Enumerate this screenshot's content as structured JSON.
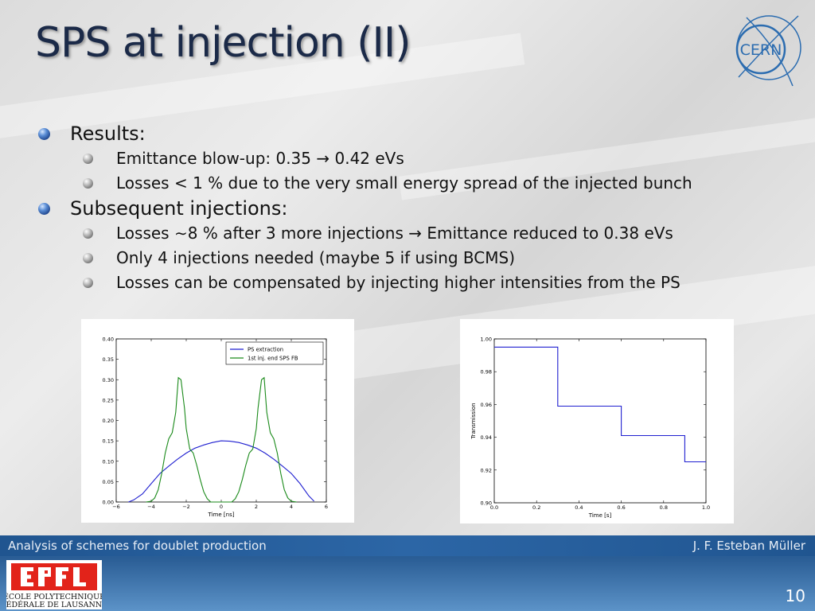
{
  "slide": {
    "title": "SPS at injection (II)",
    "bullets": [
      {
        "text": "Results:",
        "sub": [
          "Emittance blow-up: 0.35 → 0.42 eVs",
          "Losses < 1 % due to the very small energy spread of the injected bunch"
        ]
      },
      {
        "text": "Subsequent injections:",
        "sub": [
          "Losses ∼8 % after 3 more injections → Emittance reduced to 0.38 eVs",
          "Only 4 injections needed (maybe 5 if using BCMS)",
          "Losses can be compensated by injecting higher intensities from the PS"
        ]
      }
    ],
    "footer_left": "Analysis of schemes for doublet production",
    "footer_right": "J. F. Esteban Müller",
    "page_number": "10",
    "logo_cern_text": "CERN",
    "logo_epfl_lines": [
      "ÉCOLE POLYTECHNIQUE",
      "FÉDÉRALE DE LAUSANNE"
    ]
  },
  "colors": {
    "title": "#1b2a48",
    "blue_series": "#1f1fd0",
    "green_series": "#1a8a1a",
    "footer": "#2a5d95"
  },
  "chart_data": [
    {
      "type": "line",
      "xlabel": "Time [ns]",
      "ylabel": "",
      "xlim": [
        -6,
        6
      ],
      "ylim": [
        0,
        0.4
      ],
      "xticks": [
        -6,
        -4,
        -2,
        0,
        2,
        4,
        6
      ],
      "yticks": [
        0.0,
        0.05,
        0.1,
        0.15,
        0.2,
        0.25,
        0.3,
        0.35,
        0.4
      ],
      "legend_position": "top-right",
      "series": [
        {
          "name": "PS extraction",
          "color": "#1f1fd0",
          "x": [
            -5.3,
            -5,
            -4.5,
            -4,
            -3.5,
            -3,
            -2.5,
            -2,
            -1.5,
            -1,
            -0.5,
            0,
            0.5,
            1,
            1.5,
            2,
            2.5,
            3,
            3.5,
            4,
            4.5,
            5,
            5.3
          ],
          "y": [
            0,
            0.005,
            0.02,
            0.045,
            0.07,
            0.088,
            0.105,
            0.12,
            0.132,
            0.14,
            0.146,
            0.15,
            0.149,
            0.146,
            0.14,
            0.132,
            0.12,
            0.105,
            0.088,
            0.07,
            0.045,
            0.015,
            0.002
          ]
        },
        {
          "name": "1st inj. end SPS FB",
          "color": "#1a8a1a",
          "x": [
            -4.3,
            -4,
            -3.8,
            -3.6,
            -3.4,
            -3.2,
            -3,
            -2.8,
            -2.6,
            -2.45,
            -2.3,
            -2.1,
            -2,
            -1.8,
            -1.6,
            -1.4,
            -1.2,
            -1,
            -0.8,
            -0.6,
            0.6,
            0.8,
            1,
            1.2,
            1.4,
            1.6,
            1.8,
            2,
            2.1,
            2.3,
            2.45,
            2.6,
            2.8,
            3,
            3.2,
            3.4,
            3.6,
            3.8,
            4,
            4.3
          ],
          "y": [
            0,
            0.002,
            0.01,
            0.03,
            0.07,
            0.12,
            0.155,
            0.17,
            0.22,
            0.305,
            0.3,
            0.23,
            0.18,
            0.13,
            0.12,
            0.09,
            0.055,
            0.025,
            0.008,
            0,
            0,
            0.008,
            0.025,
            0.055,
            0.09,
            0.12,
            0.13,
            0.18,
            0.23,
            0.3,
            0.305,
            0.22,
            0.17,
            0.155,
            0.12,
            0.07,
            0.03,
            0.01,
            0.002,
            0
          ]
        }
      ]
    },
    {
      "type": "line",
      "xlabel": "Time [s]",
      "ylabel": "Transmission",
      "xlim": [
        0,
        1.0
      ],
      "ylim": [
        0.9,
        1.0
      ],
      "xticks": [
        0.0,
        0.2,
        0.4,
        0.6,
        0.8,
        1.0
      ],
      "yticks": [
        0.9,
        0.92,
        0.94,
        0.96,
        0.98,
        1.0
      ],
      "series": [
        {
          "name": "",
          "color": "#1f1fd0",
          "step": true,
          "x": [
            0,
            0.3,
            0.3,
            0.6,
            0.6,
            0.9,
            0.9,
            1.0
          ],
          "y": [
            0.995,
            0.995,
            0.959,
            0.959,
            0.941,
            0.941,
            0.925,
            0.925
          ]
        }
      ]
    }
  ]
}
